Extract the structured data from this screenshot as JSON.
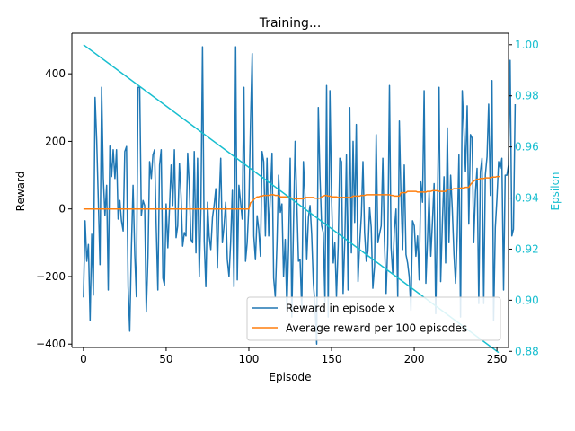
{
  "chart_data": {
    "type": "line",
    "title": "Training...",
    "xlabel": "Episode",
    "ylabel": "Reward",
    "y2label": "Epsilon",
    "xlim": [
      -7,
      257
    ],
    "ylim": [
      -410,
      520
    ],
    "y2lim": [
      0.8815,
      1.0045
    ],
    "x_ticks": [
      0,
      50,
      100,
      150,
      200,
      250
    ],
    "y_ticks": [
      -400,
      -200,
      0,
      200,
      400
    ],
    "y2_ticks": [
      0.88,
      0.9,
      0.92,
      0.94,
      0.96,
      0.98,
      1.0
    ],
    "grid": false,
    "legend_position": "lower-right",
    "colors": {
      "reward": "#1f77b4",
      "average": "#ff7f0e",
      "epsilon": "#17becf",
      "axis": "#000000"
    },
    "series": [
      {
        "name": "Reward in episode x",
        "axis": "left",
        "x_start": 0,
        "x_step": 1,
        "values": [
          -262,
          -35,
          -155,
          -105,
          -330,
          -75,
          -255,
          330,
          205,
          18,
          -165,
          360,
          90,
          -20,
          70,
          -240,
          186,
          96,
          175,
          90,
          175,
          -30,
          25,
          -35,
          -65,
          170,
          185,
          -230,
          -362,
          -110,
          70,
          -135,
          -260,
          360,
          360,
          -20,
          25,
          10,
          -305,
          -140,
          140,
          90,
          160,
          175,
          -55,
          -240,
          130,
          175,
          -205,
          -225,
          15,
          -115,
          0,
          130,
          10,
          175,
          -85,
          -50,
          135,
          40,
          -110,
          -70,
          -80,
          165,
          70,
          -90,
          -100,
          170,
          -130,
          150,
          -200,
          0,
          480,
          -95,
          -230,
          20,
          -80,
          -120,
          -25,
          10,
          60,
          -175,
          15,
          150,
          -100,
          -50,
          20,
          -150,
          -200,
          -100,
          55,
          -230,
          480,
          -210,
          70,
          20,
          -30,
          360,
          -155,
          -100,
          10,
          250,
          460,
          -80,
          -150,
          -20,
          -60,
          -140,
          170,
          140,
          -80,
          150,
          -80,
          40,
          165,
          -205,
          -260,
          -100,
          100,
          -10,
          15,
          -200,
          -90,
          -300,
          -115,
          150,
          -320,
          -45,
          200,
          20,
          -155,
          -150,
          -300,
          140,
          30,
          -150,
          -25,
          10,
          -75,
          -220,
          -285,
          -400,
          300,
          100,
          -50,
          -70,
          -275,
          365,
          -320,
          350,
          40,
          -160,
          -100,
          -260,
          -110,
          150,
          140,
          -250,
          -90,
          160,
          -240,
          300,
          -130,
          200,
          -40,
          250,
          -215,
          -105,
          -20,
          140,
          -70,
          -155,
          -125,
          5,
          -55,
          -235,
          -170,
          220,
          -100,
          -75,
          -50,
          150,
          -95,
          -250,
          -105,
          365,
          -115,
          -190,
          -60,
          0,
          -260,
          260,
          40,
          -120,
          130,
          -135,
          -160,
          -200,
          -300,
          -35,
          -50,
          -140,
          -80,
          -210,
          80,
          20,
          350,
          -220,
          -95,
          50,
          -140,
          -40,
          75,
          -310,
          -5,
          360,
          -215,
          -40,
          95,
          -160,
          240,
          -100,
          100,
          0,
          -135,
          -220,
          -80,
          160,
          -320,
          350,
          240,
          110,
          305,
          -45,
          220,
          210,
          -100,
          50,
          120,
          -280,
          110,
          150,
          -280,
          100,
          155,
          310,
          40,
          380,
          -330,
          -55,
          30,
          140,
          120,
          150,
          -240,
          100,
          100,
          130,
          440,
          -80,
          -60,
          310
        ]
      },
      {
        "name": "Average reward per 100 episodes",
        "axis": "left",
        "x_start": 0,
        "x_step": 1,
        "values": [
          0,
          0,
          0,
          0,
          0,
          0,
          0,
          0,
          0,
          0,
          0,
          0,
          0,
          0,
          0,
          0,
          0,
          0,
          0,
          0,
          0,
          0,
          0,
          0,
          0,
          0,
          0,
          0,
          0,
          0,
          0,
          0,
          0,
          0,
          0,
          0,
          0,
          0,
          0,
          0,
          0,
          0,
          0,
          0,
          0,
          0,
          0,
          0,
          0,
          0,
          0,
          0,
          0,
          0,
          0,
          0,
          0,
          0,
          0,
          0,
          0,
          0,
          0,
          0,
          0,
          0,
          0,
          0,
          0,
          0,
          0,
          0,
          0,
          0,
          0,
          0,
          0,
          0,
          0,
          0,
          0,
          0,
          0,
          0,
          0,
          0,
          0,
          0,
          0,
          0,
          0,
          0,
          0,
          0,
          0,
          0,
          0,
          0,
          0,
          0,
          0,
          18,
          22,
          28,
          32,
          36,
          36,
          38,
          38,
          40,
          40,
          40,
          40,
          42,
          42,
          42,
          40,
          40,
          40,
          36,
          36,
          36,
          36,
          36,
          36,
          34,
          32,
          32,
          30,
          30,
          30,
          30,
          30,
          30,
          34,
          34,
          34,
          34,
          34,
          34,
          32,
          32,
          32,
          32,
          36,
          38,
          40,
          40,
          38,
          38,
          36,
          36,
          36,
          36,
          34,
          34,
          34,
          34,
          34,
          34,
          34,
          34,
          34,
          38,
          38,
          38,
          38,
          38,
          40,
          40,
          40,
          42,
          42,
          42,
          42,
          42,
          42,
          42,
          42,
          42,
          42,
          42,
          42,
          42,
          42,
          42,
          40,
          40,
          38,
          38,
          38,
          38,
          48,
          48,
          48,
          48,
          52,
          52,
          52,
          52,
          52,
          52,
          50,
          50,
          50,
          50,
          50,
          50,
          52,
          52,
          52,
          54,
          54,
          54,
          54,
          52,
          52,
          52,
          52,
          52,
          58,
          58,
          58,
          58,
          60,
          60,
          60,
          60,
          62,
          62,
          62,
          64,
          64,
          64,
          72,
          78,
          82,
          86,
          88,
          88,
          90,
          90,
          90,
          92,
          92,
          92,
          92,
          94,
          94,
          94,
          96,
          96,
          96
        ]
      },
      {
        "name": "Epsilon",
        "axis": "right",
        "x_start": 0,
        "x_end": 251,
        "start_value": 1.0,
        "end_value": 0.8795
      }
    ]
  },
  "legend": {
    "entries": [
      "Reward in episode x",
      "Average reward per 100 episodes"
    ]
  }
}
